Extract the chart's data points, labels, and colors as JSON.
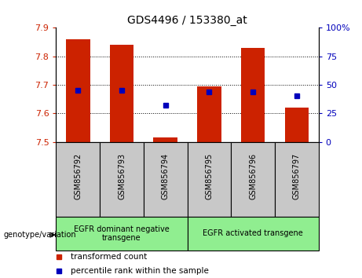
{
  "title": "GDS4496 / 153380_at",
  "samples": [
    "GSM856792",
    "GSM856793",
    "GSM856794",
    "GSM856795",
    "GSM856796",
    "GSM856797"
  ],
  "red_bar_top": [
    7.86,
    7.84,
    7.515,
    7.695,
    7.83,
    7.62
  ],
  "red_bar_bottom": 7.5,
  "blue_percentile": [
    45,
    45,
    32,
    44,
    44,
    40
  ],
  "ylim_left": [
    7.5,
    7.9
  ],
  "ylim_right": [
    0,
    100
  ],
  "yticks_left": [
    7.5,
    7.6,
    7.7,
    7.8,
    7.9
  ],
  "yticks_right": [
    0,
    25,
    50,
    75,
    100
  ],
  "ytick_labels_right": [
    "0",
    "25",
    "50",
    "75",
    "100%"
  ],
  "groups": [
    {
      "label": "EGFR dominant negative\ntransgene",
      "samples": [
        0,
        1,
        2
      ]
    },
    {
      "label": "EGFR activated transgene",
      "samples": [
        3,
        4,
        5
      ]
    }
  ],
  "green_color": "#90EE90",
  "gray_color": "#C8C8C8",
  "bar_color": "#CC2200",
  "blue_color": "#0000BB",
  "bar_width": 0.55,
  "legend_red_label": "transformed count",
  "legend_blue_label": "percentile rank within the sample",
  "genotype_label": "genotype/variation",
  "title_fontsize": 10,
  "plot_bg": "#FFFFFF"
}
